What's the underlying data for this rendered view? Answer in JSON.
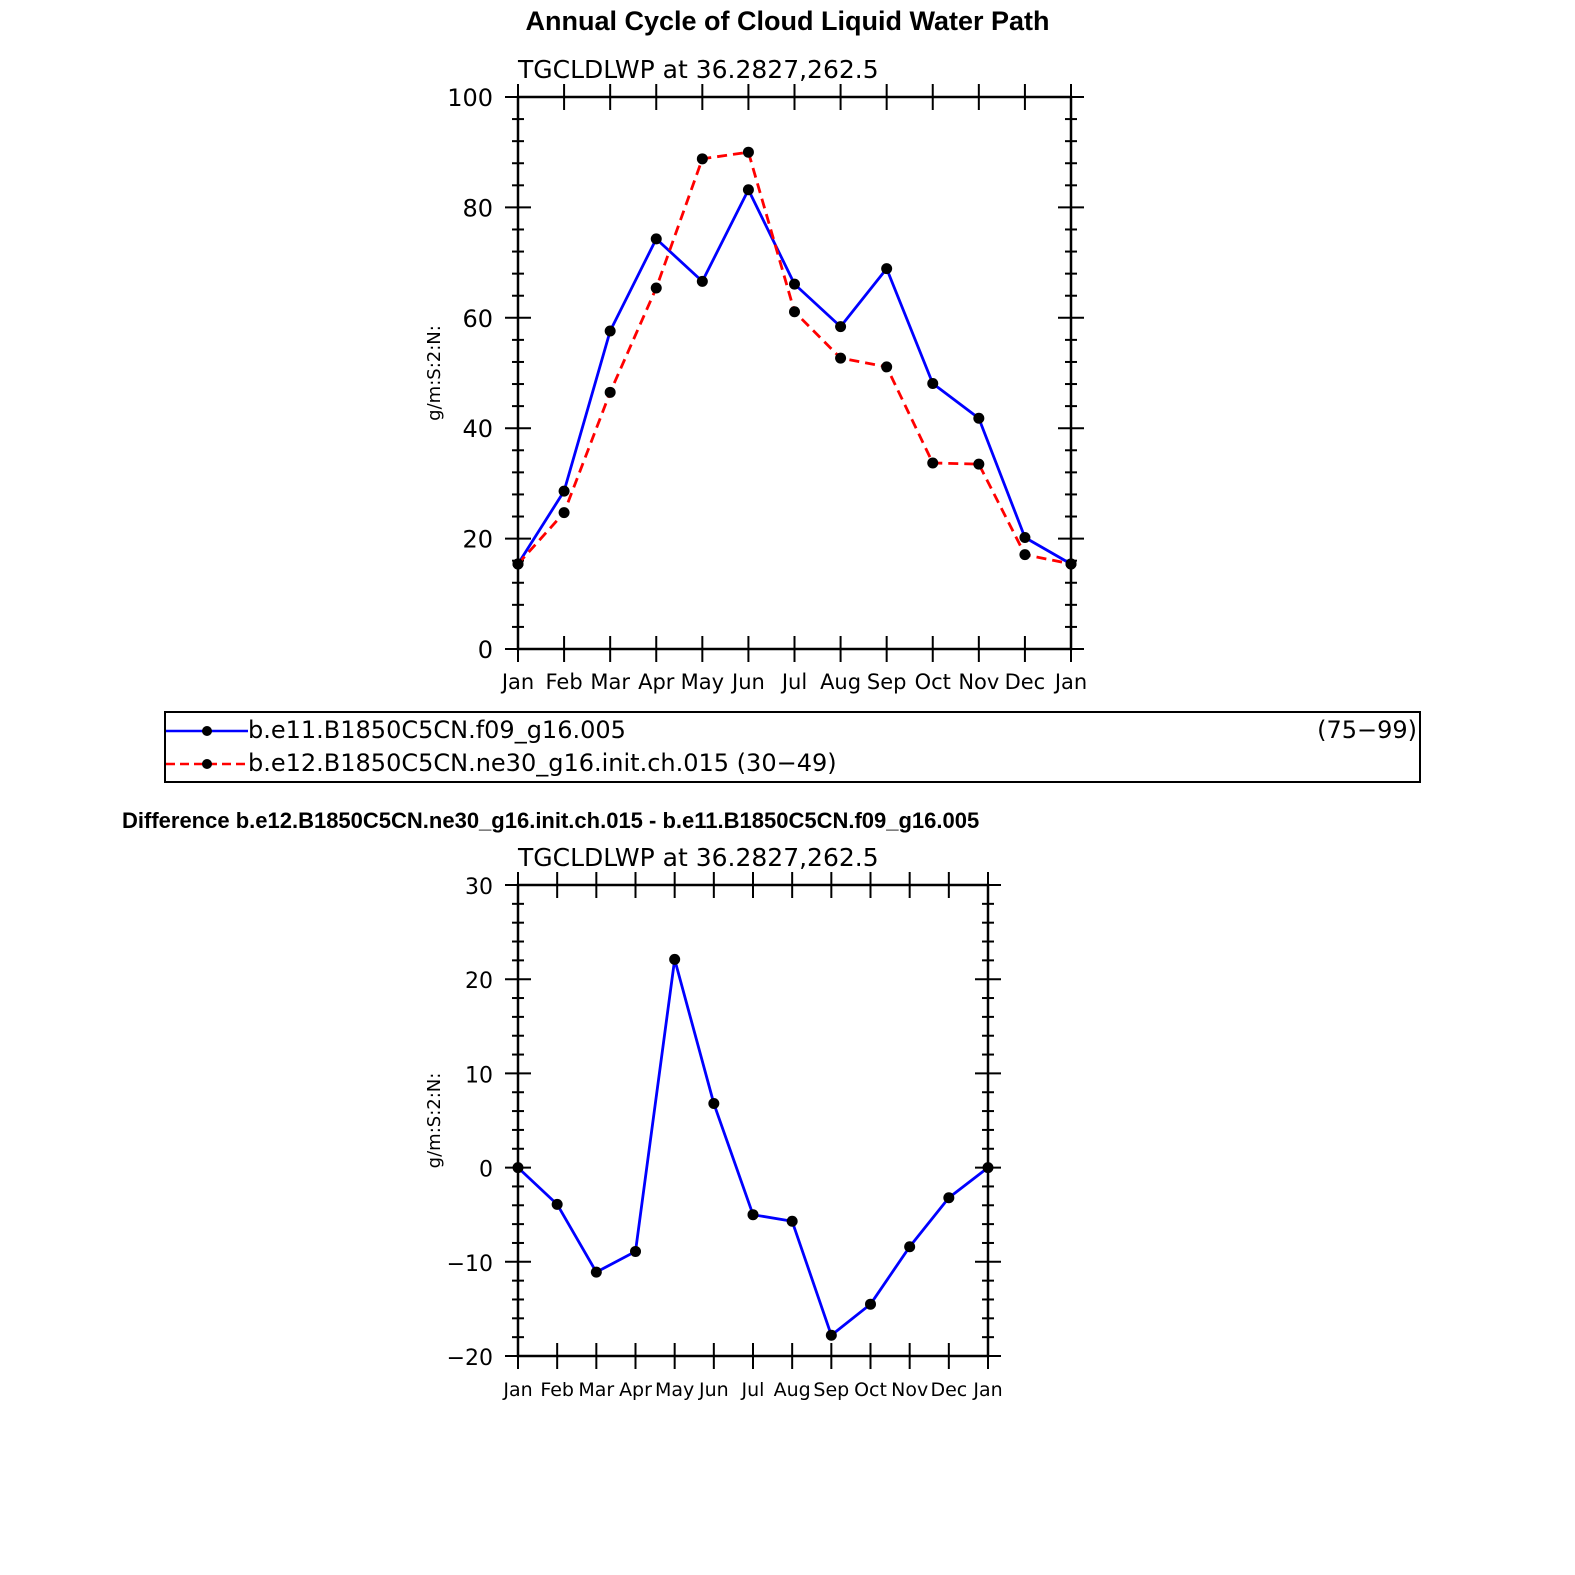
{
  "figure_title": "Annual Cycle of Cloud Liquid Water Path",
  "difference_title": "Difference b.e12.B1850C5CN.ne30_g16.init.ch.015 - b.e11.B1850C5CN.f09_g16.005",
  "legend": {
    "entries": [
      {
        "label": "b.e11.B1850C5CN.f09_g16.005",
        "years": "(75−99)"
      },
      {
        "label": "b.e12.B1850C5CN.ne30_g16.init.ch.015 (30−49)"
      }
    ]
  },
  "chart_data": [
    {
      "type": "line",
      "subtitle": "TGCLDLWP  at  36.2827,262.5",
      "ylabel": "g/m:S:2:N:",
      "ylim": [
        0,
        100
      ],
      "yticks": [
        0,
        20,
        40,
        60,
        80,
        100
      ],
      "ytick_labels": [
        "0",
        "20",
        "40",
        "60",
        "80",
        "100"
      ],
      "categories": [
        "Jan",
        "Feb",
        "Mar",
        "Apr",
        "May",
        "Jun",
        "Jul",
        "Aug",
        "Sep",
        "Oct",
        "Nov",
        "Dec",
        "Jan"
      ],
      "grid": false,
      "series": [
        {
          "name": "b.e11.B1850C5CN.f09_g16.005",
          "color": "#0000ff",
          "dash": "solid",
          "marker": "filled-circle",
          "values": [
            15.4,
            28.6,
            57.6,
            74.3,
            66.6,
            83.2,
            66.1,
            58.4,
            68.9,
            48.1,
            41.8,
            20.2,
            15.4
          ]
        },
        {
          "name": "b.e12.B1850C5CN.ne30_g16.init.ch.015",
          "color": "#ff0000",
          "dash": "dashed",
          "marker": "filled-circle",
          "values": [
            15.4,
            24.7,
            46.5,
            65.4,
            88.8,
            90.0,
            61.1,
            52.7,
            51.1,
            33.7,
            33.5,
            17.1,
            15.4
          ]
        }
      ]
    },
    {
      "type": "line",
      "subtitle": "TGCLDLWP  at  36.2827,262.5",
      "ylabel": "g/m:S:2:N:",
      "ylim": [
        -20,
        30
      ],
      "yticks": [
        -20,
        -10,
        0,
        10,
        20,
        30
      ],
      "ytick_labels": [
        "−20",
        "−10",
        "0",
        "10",
        "20",
        "30"
      ],
      "categories": [
        "Jan",
        "Feb",
        "Mar",
        "Apr",
        "May",
        "Jun",
        "Jul",
        "Aug",
        "Sep",
        "Oct",
        "Nov",
        "Dec",
        "Jan"
      ],
      "grid": false,
      "series": [
        {
          "color": "#0000ff",
          "dash": "solid",
          "marker": "filled-circle",
          "values": [
            0.0,
            -3.9,
            -11.1,
            -8.9,
            22.1,
            6.8,
            -5.0,
            -5.7,
            -17.8,
            -14.5,
            -8.4,
            -3.2,
            0.0
          ]
        }
      ]
    }
  ]
}
